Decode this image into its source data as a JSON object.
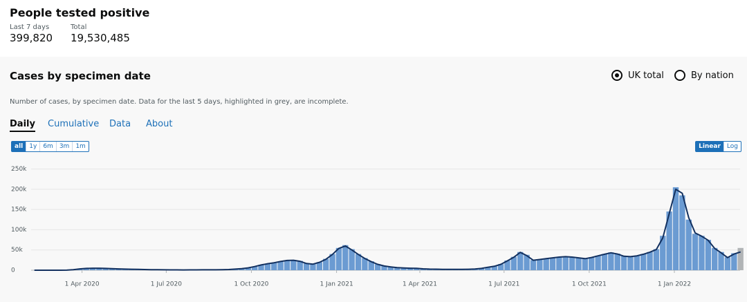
{
  "header": {
    "title": "People tested positive",
    "stats": [
      {
        "label": "Last 7 days",
        "value": "399,820"
      },
      {
        "label": "Total",
        "value": "19,530,485"
      }
    ]
  },
  "card": {
    "title": "Cases by specimen date",
    "options": [
      "UK total",
      "By nation"
    ],
    "selected_option": 0,
    "description": "Number of cases, by specimen date. Data for the last 5 days, highlighted in grey, are incomplete.",
    "tabs": [
      "Daily",
      "Cumulative",
      "Data",
      "About"
    ],
    "active_tab": 0,
    "ranges": [
      "all",
      "1y",
      "6m",
      "3m",
      "1m"
    ],
    "active_range": 0,
    "scales": [
      "Linear",
      "Log"
    ],
    "active_scale": 0
  },
  "chart_data": {
    "type": "bar",
    "x": [
      "2020-02-06",
      "2020-02-13",
      "2020-02-20",
      "2020-02-27",
      "2020-03-05",
      "2020-03-12",
      "2020-03-19",
      "2020-03-26",
      "2020-04-02",
      "2020-04-09",
      "2020-04-16",
      "2020-04-23",
      "2020-04-30",
      "2020-05-07",
      "2020-05-14",
      "2020-05-21",
      "2020-05-28",
      "2020-06-04",
      "2020-06-11",
      "2020-06-18",
      "2020-06-25",
      "2020-07-02",
      "2020-07-09",
      "2020-07-16",
      "2020-07-23",
      "2020-07-30",
      "2020-08-06",
      "2020-08-13",
      "2020-08-20",
      "2020-08-27",
      "2020-09-03",
      "2020-09-10",
      "2020-09-17",
      "2020-09-24",
      "2020-10-01",
      "2020-10-08",
      "2020-10-15",
      "2020-10-22",
      "2020-10-29",
      "2020-11-05",
      "2020-11-12",
      "2020-11-19",
      "2020-11-26",
      "2020-12-03",
      "2020-12-10",
      "2020-12-17",
      "2020-12-24",
      "2020-12-31",
      "2021-01-07",
      "2021-01-14",
      "2021-01-21",
      "2021-01-28",
      "2021-02-04",
      "2021-02-11",
      "2021-02-18",
      "2021-02-25",
      "2021-03-04",
      "2021-03-11",
      "2021-03-18",
      "2021-03-25",
      "2021-04-01",
      "2021-04-08",
      "2021-04-15",
      "2021-04-22",
      "2021-04-29",
      "2021-05-06",
      "2021-05-13",
      "2021-05-20",
      "2021-05-27",
      "2021-06-03",
      "2021-06-10",
      "2021-06-17",
      "2021-06-24",
      "2021-07-01",
      "2021-07-08",
      "2021-07-15",
      "2021-07-22",
      "2021-07-29",
      "2021-08-05",
      "2021-08-12",
      "2021-08-19",
      "2021-08-26",
      "2021-09-02",
      "2021-09-09",
      "2021-09-16",
      "2021-09-23",
      "2021-09-30",
      "2021-10-07",
      "2021-10-14",
      "2021-10-21",
      "2021-10-28",
      "2021-11-04",
      "2021-11-11",
      "2021-11-18",
      "2021-11-25",
      "2021-12-02",
      "2021-12-09",
      "2021-12-16",
      "2021-12-23",
      "2021-12-30",
      "2022-01-06",
      "2022-01-13",
      "2022-01-20",
      "2022-01-27",
      "2022-02-03",
      "2022-02-10",
      "2022-02-17",
      "2022-02-24",
      "2022-03-03",
      "2022-03-10"
    ],
    "series": [
      {
        "type": "bar",
        "color": "#6b9bd2",
        "values": [
          0,
          0,
          0,
          10,
          50,
          300,
          1500,
          3500,
          4800,
          5200,
          5000,
          4600,
          4000,
          3400,
          2900,
          2500,
          2100,
          1800,
          1500,
          1300,
          1100,
          900,
          800,
          750,
          800,
          850,
          950,
          1000,
          1100,
          1200,
          1600,
          2800,
          4000,
          5500,
          8500,
          13000,
          16000,
          18500,
          21000,
          24000,
          25000,
          23000,
          17000,
          15500,
          20000,
          28000,
          40000,
          55000,
          62000,
          52000,
          40000,
          30000,
          22000,
          15000,
          11000,
          8500,
          6500,
          5500,
          5000,
          4800,
          3500,
          2800,
          2600,
          2400,
          2300,
          2200,
          2300,
          2500,
          3000,
          4500,
          7500,
          10000,
          15000,
          24000,
          33000,
          45000,
          38000,
          25000,
          27000,
          29000,
          31000,
          33000,
          34000,
          33000,
          31000,
          29000,
          32000,
          36000,
          40000,
          44000,
          41000,
          35000,
          34000,
          36000,
          40000,
          45000,
          52000,
          85000,
          145000,
          205000,
          185000,
          125000,
          90000,
          85000,
          75000,
          55000,
          45000,
          32000,
          42000,
          55000
        ]
      },
      {
        "type": "line",
        "color": "#12305f",
        "values": [
          0,
          0,
          0,
          10,
          40,
          250,
          1300,
          3200,
          4500,
          5000,
          4900,
          4500,
          4000,
          3300,
          2800,
          2400,
          2000,
          1700,
          1400,
          1200,
          1000,
          850,
          780,
          760,
          800,
          850,
          950,
          1000,
          1100,
          1200,
          1700,
          2700,
          3900,
          5800,
          9000,
          13000,
          16000,
          18500,
          21500,
          24000,
          24500,
          22000,
          16500,
          15000,
          19500,
          27000,
          39000,
          54000,
          60000,
          50000,
          39000,
          29000,
          21000,
          14500,
          10500,
          8200,
          6400,
          5400,
          4900,
          4600,
          3400,
          2700,
          2500,
          2300,
          2200,
          2100,
          2200,
          2400,
          2900,
          4400,
          7300,
          9800,
          14500,
          23000,
          32000,
          44000,
          36000,
          24500,
          26500,
          28500,
          30500,
          32500,
          33500,
          32500,
          30500,
          28500,
          31500,
          35500,
          39500,
          43000,
          40000,
          34500,
          33500,
          35500,
          39500,
          44500,
          51000,
          80000,
          140000,
          200000,
          190000,
          130000,
          92000,
          84000,
          74000,
          54000,
          43000,
          31000,
          40000,
          45000
        ]
      }
    ],
    "incomplete_color": "#b1b4b6",
    "incomplete_from": "2022-03-08",
    "xlim": [
      "2020-02-06",
      "2022-03-13"
    ],
    "xticks": [
      {
        "value": "2020-04-01",
        "label": "1 Apr 2020"
      },
      {
        "value": "2020-07-01",
        "label": "1 Jul 2020"
      },
      {
        "value": "2020-10-01",
        "label": "1 Oct 2020"
      },
      {
        "value": "2021-01-01",
        "label": "1 Jan 2021"
      },
      {
        "value": "2021-04-01",
        "label": "1 Apr 2021"
      },
      {
        "value": "2021-07-01",
        "label": "1 Jul 2021"
      },
      {
        "value": "2021-10-01",
        "label": "1 Oct 2021"
      },
      {
        "value": "2022-01-01",
        "label": "1 Jan 2022"
      }
    ],
    "ylim": [
      0,
      280000
    ],
    "yticks": [
      0,
      {
        "value": 50000,
        "label": "50k"
      },
      {
        "value": 100000,
        "label": "100k"
      },
      {
        "value": 150000,
        "label": "150k"
      },
      {
        "value": 200000,
        "label": "200k"
      },
      {
        "value": 250000,
        "label": "250k"
      }
    ],
    "grid": true
  }
}
